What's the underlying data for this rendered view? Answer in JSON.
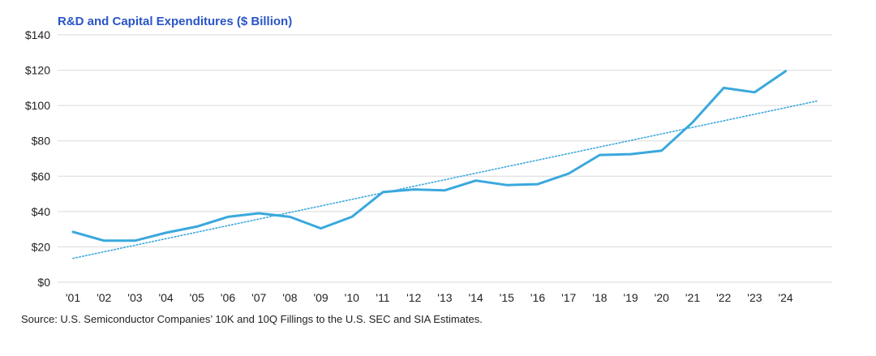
{
  "chart_data": {
    "type": "line",
    "title": "R&D and Capital Expenditures ($ Billion)",
    "xlabel": "",
    "ylabel": "",
    "ylim": [
      0,
      140
    ],
    "y_ticks": [
      0,
      20,
      40,
      60,
      80,
      100,
      120,
      140
    ],
    "y_tick_labels": [
      "$0",
      "$20",
      "$40",
      "$60",
      "$80",
      "$100",
      "$120",
      "$140"
    ],
    "categories": [
      "'01",
      "'02",
      "'03",
      "'04",
      "'05",
      "'06",
      "'07",
      "'08",
      "'09",
      "'10",
      "'11",
      "'12",
      "'13",
      "'14",
      "'15",
      "'16",
      "'17",
      "'18",
      "'19",
      "'20",
      "'21",
      "'22",
      "'23",
      "'24"
    ],
    "series": [
      {
        "values": [
          28.5,
          23.5,
          23.5,
          28,
          31.5,
          37,
          39,
          37,
          30.5,
          37,
          51,
          52.5,
          52,
          57.5,
          55,
          55.5,
          61.5,
          72,
          72.5,
          74.5,
          90.5,
          110,
          107.5,
          119.5
        ],
        "color": "#3aa8dd",
        "style": "solid"
      }
    ],
    "trendline": {
      "style": "dotted",
      "color": "#3aa8dd",
      "start_value": 13.5,
      "end_value": 102.5,
      "extends_past_last_category": true
    },
    "grid": true,
    "legend": "none"
  },
  "footer": {
    "source": "Source: U.S. Semiconductor Companies’ 10K and 10Q Fillings to the U.S. SEC and SIA Estimates."
  }
}
